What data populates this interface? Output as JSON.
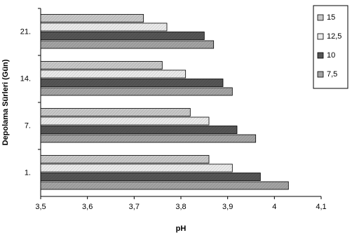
{
  "chart_data": {
    "type": "hbar",
    "x_label": "pH",
    "y_label": "Depolama Sürleri (Gün)",
    "categories": [
      "1.",
      "7.",
      "14.",
      "21."
    ],
    "series": [
      {
        "name": "15",
        "color": "#c8c8c8",
        "values": [
          3.86,
          3.82,
          3.76,
          3.72
        ]
      },
      {
        "name": "12,5",
        "color": "#ebebeb",
        "values": [
          3.91,
          3.86,
          3.81,
          3.77
        ]
      },
      {
        "name": "10",
        "color": "#555555",
        "values": [
          3.97,
          3.92,
          3.89,
          3.85
        ]
      },
      {
        "name": "7,5",
        "color": "#a3a3a3",
        "values": [
          4.03,
          3.96,
          3.91,
          3.87
        ]
      }
    ],
    "xlim": [
      3.5,
      4.1
    ],
    "xticks": [
      {
        "value": 3.5,
        "label": "3,5"
      },
      {
        "value": 3.6,
        "label": "3,6"
      },
      {
        "value": 3.7,
        "label": "3,7"
      },
      {
        "value": 3.8,
        "label": "3,8"
      },
      {
        "value": 3.9,
        "label": "3,9"
      },
      4,
      {
        "value": 4.1,
        "label": "4,1"
      }
    ],
    "legend": "top-right"
  }
}
